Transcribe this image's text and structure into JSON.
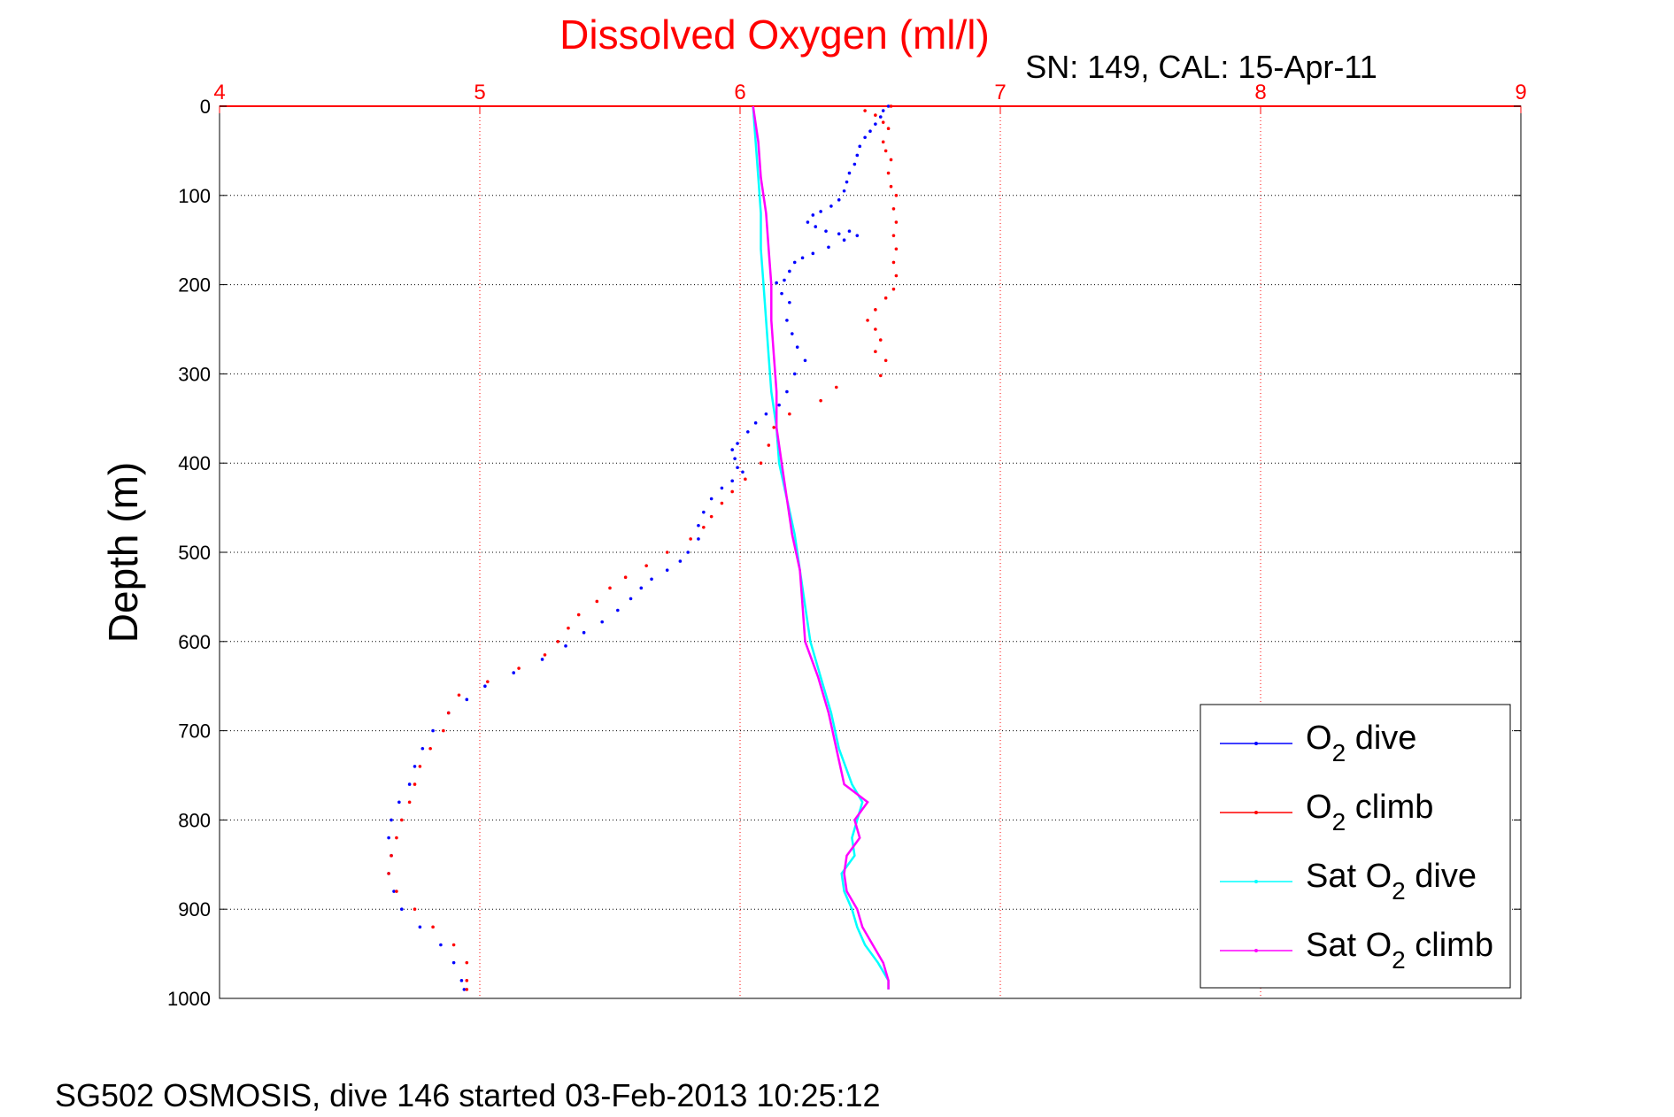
{
  "chart_data": {
    "type": "line",
    "title": "Dissolved Oxygen (ml/l)",
    "subtitle": "SN: 149, CAL: 15-Apr-11",
    "xlabel": "",
    "ylabel": "Depth (m)",
    "footer": "SG502 OSMOSIS, dive 146 started 03-Feb-2013 10:25:12",
    "xlim": [
      4,
      9
    ],
    "ylim": [
      0,
      1000
    ],
    "y_reversed": true,
    "x_axis_location": "top",
    "xticks": [
      4,
      5,
      6,
      7,
      8,
      9
    ],
    "yticks": [
      0,
      100,
      200,
      300,
      400,
      500,
      600,
      700,
      800,
      900,
      1000
    ],
    "grid": true,
    "legend_position": "lower-right",
    "series": [
      {
        "name": "O2 dive",
        "legend_main": "O",
        "legend_sub": "2",
        "legend_rest": " dive",
        "color": "#0000ff",
        "style": "dots",
        "points": [
          [
            6.57,
            0
          ],
          [
            6.55,
            5
          ],
          [
            6.54,
            12
          ],
          [
            6.52,
            20
          ],
          [
            6.5,
            28
          ],
          [
            6.48,
            35
          ],
          [
            6.46,
            45
          ],
          [
            6.45,
            55
          ],
          [
            6.44,
            65
          ],
          [
            6.42,
            75
          ],
          [
            6.41,
            85
          ],
          [
            6.4,
            95
          ],
          [
            6.38,
            105
          ],
          [
            6.35,
            112
          ],
          [
            6.31,
            118
          ],
          [
            6.28,
            122
          ],
          [
            6.26,
            130
          ],
          [
            6.29,
            135
          ],
          [
            6.33,
            140
          ],
          [
            6.38,
            143
          ],
          [
            6.42,
            140
          ],
          [
            6.45,
            145
          ],
          [
            6.4,
            150
          ],
          [
            6.34,
            158
          ],
          [
            6.28,
            165
          ],
          [
            6.24,
            170
          ],
          [
            6.21,
            175
          ],
          [
            6.19,
            185
          ],
          [
            6.17,
            195
          ],
          [
            6.14,
            198
          ],
          [
            6.16,
            210
          ],
          [
            6.19,
            220
          ],
          [
            6.18,
            240
          ],
          [
            6.2,
            255
          ],
          [
            6.22,
            270
          ],
          [
            6.25,
            285
          ],
          [
            6.21,
            300
          ],
          [
            6.18,
            320
          ],
          [
            6.15,
            335
          ],
          [
            6.1,
            345
          ],
          [
            6.06,
            355
          ],
          [
            6.03,
            365
          ],
          [
            5.99,
            378
          ],
          [
            5.97,
            385
          ],
          [
            5.98,
            395
          ],
          [
            5.99,
            405
          ],
          [
            6.01,
            410
          ],
          [
            5.97,
            420
          ],
          [
            5.93,
            428
          ],
          [
            5.89,
            440
          ],
          [
            5.86,
            455
          ],
          [
            5.84,
            470
          ],
          [
            5.84,
            485
          ],
          [
            5.8,
            500
          ],
          [
            5.77,
            510
          ],
          [
            5.72,
            520
          ],
          [
            5.66,
            530
          ],
          [
            5.62,
            540
          ],
          [
            5.58,
            552
          ],
          [
            5.53,
            565
          ],
          [
            5.47,
            578
          ],
          [
            5.4,
            590
          ],
          [
            5.33,
            605
          ],
          [
            5.24,
            620
          ],
          [
            5.13,
            635
          ],
          [
            5.02,
            650
          ],
          [
            4.95,
            665
          ],
          [
            4.88,
            680
          ],
          [
            4.82,
            700
          ],
          [
            4.78,
            720
          ],
          [
            4.75,
            740
          ],
          [
            4.73,
            760
          ],
          [
            4.69,
            780
          ],
          [
            4.66,
            800
          ],
          [
            4.65,
            820
          ],
          [
            4.66,
            840
          ],
          [
            4.65,
            860
          ],
          [
            4.67,
            880
          ],
          [
            4.7,
            900
          ],
          [
            4.77,
            920
          ],
          [
            4.85,
            940
          ],
          [
            4.9,
            960
          ],
          [
            4.93,
            980
          ],
          [
            4.94,
            990
          ]
        ]
      },
      {
        "name": "O2 climb",
        "legend_main": "O",
        "legend_sub": "2",
        "legend_rest": " climb",
        "color": "#ff0000",
        "style": "dots",
        "points": [
          [
            6.58,
            0
          ],
          [
            6.48,
            5
          ],
          [
            6.52,
            10
          ],
          [
            6.55,
            18
          ],
          [
            6.57,
            25
          ],
          [
            6.55,
            40
          ],
          [
            6.56,
            50
          ],
          [
            6.58,
            60
          ],
          [
            6.57,
            75
          ],
          [
            6.58,
            90
          ],
          [
            6.6,
            100
          ],
          [
            6.59,
            115
          ],
          [
            6.6,
            130
          ],
          [
            6.59,
            145
          ],
          [
            6.6,
            160
          ],
          [
            6.59,
            175
          ],
          [
            6.6,
            190
          ],
          [
            6.59,
            205
          ],
          [
            6.56,
            215
          ],
          [
            6.52,
            228
          ],
          [
            6.49,
            240
          ],
          [
            6.52,
            250
          ],
          [
            6.54,
            262
          ],
          [
            6.52,
            275
          ],
          [
            6.56,
            285
          ],
          [
            6.54,
            302
          ],
          [
            6.37,
            315
          ],
          [
            6.31,
            330
          ],
          [
            6.19,
            345
          ],
          [
            6.13,
            360
          ],
          [
            6.11,
            380
          ],
          [
            6.08,
            400
          ],
          [
            6.02,
            418
          ],
          [
            5.97,
            432
          ],
          [
            5.93,
            445
          ],
          [
            5.89,
            460
          ],
          [
            5.86,
            472
          ],
          [
            5.81,
            485
          ],
          [
            5.72,
            500
          ],
          [
            5.64,
            515
          ],
          [
            5.56,
            528
          ],
          [
            5.5,
            540
          ],
          [
            5.45,
            555
          ],
          [
            5.38,
            570
          ],
          [
            5.34,
            585
          ],
          [
            5.3,
            600
          ],
          [
            5.25,
            615
          ],
          [
            5.15,
            630
          ],
          [
            5.03,
            645
          ],
          [
            4.92,
            660
          ],
          [
            4.88,
            680
          ],
          [
            4.86,
            700
          ],
          [
            4.81,
            720
          ],
          [
            4.77,
            740
          ],
          [
            4.75,
            760
          ],
          [
            4.73,
            780
          ],
          [
            4.7,
            800
          ],
          [
            4.68,
            820
          ],
          [
            4.66,
            840
          ],
          [
            4.65,
            860
          ],
          [
            4.68,
            880
          ],
          [
            4.75,
            900
          ],
          [
            4.82,
            920
          ],
          [
            4.9,
            940
          ],
          [
            4.95,
            960
          ],
          [
            4.95,
            980
          ],
          [
            4.95,
            990
          ]
        ]
      },
      {
        "name": "Sat O2 dive",
        "legend_main": "Sat O",
        "legend_sub": "2",
        "legend_rest": " dive",
        "color": "#00ffff",
        "style": "line",
        "points": [
          [
            6.05,
            0
          ],
          [
            6.06,
            40
          ],
          [
            6.07,
            80
          ],
          [
            6.08,
            120
          ],
          [
            6.08,
            160
          ],
          [
            6.09,
            200
          ],
          [
            6.1,
            240
          ],
          [
            6.11,
            280
          ],
          [
            6.12,
            320
          ],
          [
            6.14,
            360
          ],
          [
            6.15,
            400
          ],
          [
            6.18,
            440
          ],
          [
            6.21,
            480
          ],
          [
            6.23,
            520
          ],
          [
            6.25,
            560
          ],
          [
            6.27,
            600
          ],
          [
            6.31,
            640
          ],
          [
            6.35,
            680
          ],
          [
            6.38,
            720
          ],
          [
            6.43,
            760
          ],
          [
            6.47,
            780
          ],
          [
            6.45,
            800
          ],
          [
            6.43,
            820
          ],
          [
            6.44,
            840
          ],
          [
            6.39,
            860
          ],
          [
            6.4,
            880
          ],
          [
            6.43,
            900
          ],
          [
            6.45,
            920
          ],
          [
            6.48,
            940
          ],
          [
            6.53,
            960
          ],
          [
            6.57,
            980
          ],
          [
            6.57,
            990
          ]
        ]
      },
      {
        "name": "Sat O2 climb",
        "legend_main": "Sat O",
        "legend_sub": "2",
        "legend_rest": " climb",
        "color": "#ff00ff",
        "style": "line",
        "points": [
          [
            6.05,
            0
          ],
          [
            6.07,
            40
          ],
          [
            6.08,
            80
          ],
          [
            6.1,
            120
          ],
          [
            6.11,
            160
          ],
          [
            6.12,
            200
          ],
          [
            6.12,
            240
          ],
          [
            6.13,
            280
          ],
          [
            6.14,
            320
          ],
          [
            6.14,
            360
          ],
          [
            6.16,
            400
          ],
          [
            6.18,
            440
          ],
          [
            6.2,
            480
          ],
          [
            6.23,
            520
          ],
          [
            6.24,
            560
          ],
          [
            6.25,
            600
          ],
          [
            6.3,
            640
          ],
          [
            6.34,
            680
          ],
          [
            6.37,
            720
          ],
          [
            6.4,
            760
          ],
          [
            6.49,
            780
          ],
          [
            6.44,
            800
          ],
          [
            6.46,
            820
          ],
          [
            6.41,
            840
          ],
          [
            6.4,
            860
          ],
          [
            6.41,
            880
          ],
          [
            6.45,
            900
          ],
          [
            6.47,
            920
          ],
          [
            6.51,
            940
          ],
          [
            6.55,
            960
          ],
          [
            6.57,
            980
          ],
          [
            6.57,
            990
          ]
        ]
      }
    ]
  }
}
